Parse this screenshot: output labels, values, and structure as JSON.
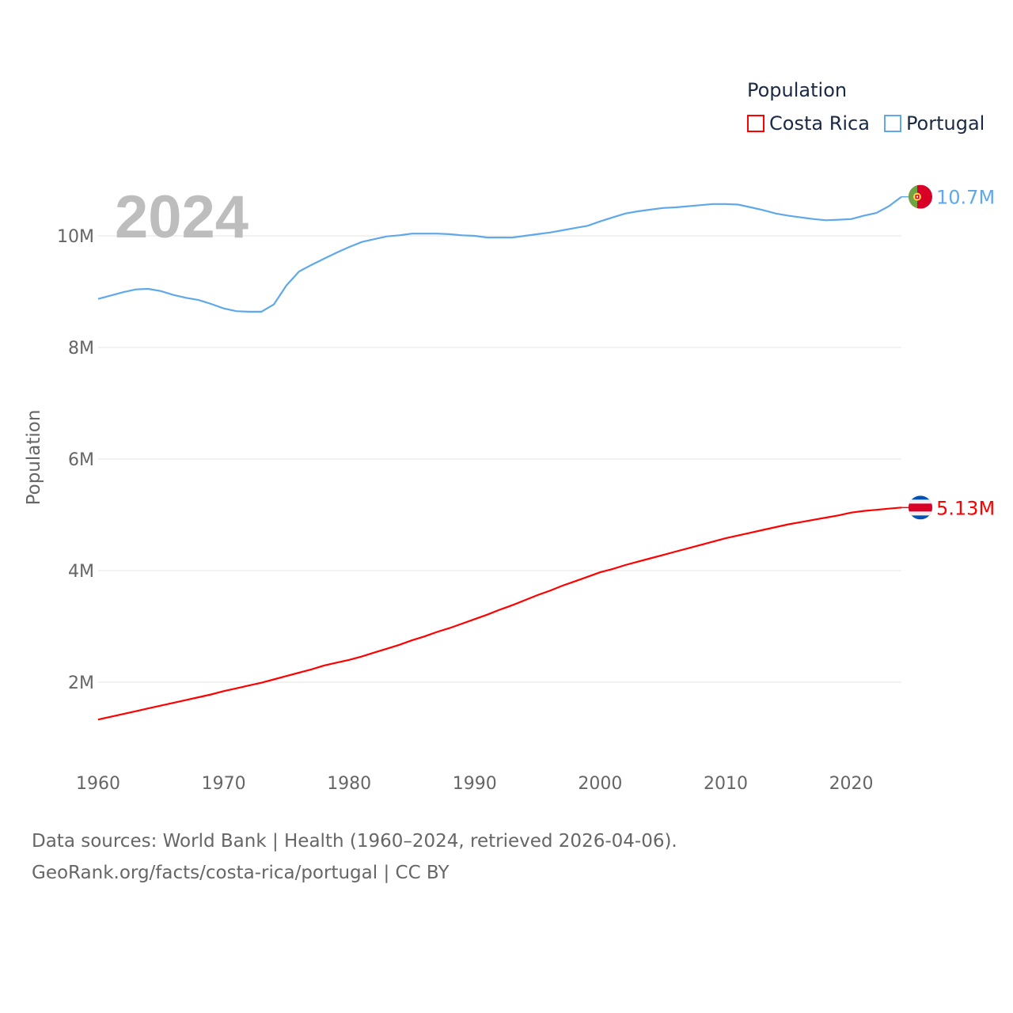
{
  "chart_data": {
    "type": "line",
    "title": "Population",
    "year_label": "2024",
    "xlabel": "",
    "ylabel": "Population",
    "xlim": [
      1960,
      2024
    ],
    "ylim": [
      0,
      10.7
    ],
    "x_ticks": [
      "1960",
      "1970",
      "1980",
      "1990",
      "2000",
      "2010",
      "2020"
    ],
    "y_ticks": [
      {
        "value": 2,
        "label": "2M"
      },
      {
        "value": 4,
        "label": "4M"
      },
      {
        "value": 6,
        "label": "6M"
      },
      {
        "value": 8,
        "label": "8M"
      },
      {
        "value": 10,
        "label": "10M"
      }
    ],
    "grid": true,
    "legend_position": "top-right",
    "x": [
      1960,
      1961,
      1962,
      1963,
      1964,
      1965,
      1966,
      1967,
      1968,
      1969,
      1970,
      1971,
      1972,
      1973,
      1974,
      1975,
      1976,
      1977,
      1978,
      1979,
      1980,
      1981,
      1982,
      1983,
      1984,
      1985,
      1986,
      1987,
      1988,
      1989,
      1990,
      1991,
      1992,
      1993,
      1994,
      1995,
      1996,
      1997,
      1998,
      1999,
      2000,
      2001,
      2002,
      2003,
      2004,
      2005,
      2006,
      2007,
      2008,
      2009,
      2010,
      2011,
      2012,
      2013,
      2014,
      2015,
      2016,
      2017,
      2018,
      2019,
      2020,
      2021,
      2022,
      2023,
      2024
    ],
    "series": [
      {
        "name": "Costa Rica",
        "color": "#ff0000",
        "end_label": "5.13M",
        "flag": "costa-rica",
        "values": [
          1.33,
          1.38,
          1.43,
          1.48,
          1.53,
          1.58,
          1.63,
          1.68,
          1.73,
          1.78,
          1.84,
          1.89,
          1.94,
          1.99,
          2.05,
          2.11,
          2.17,
          2.23,
          2.3,
          2.35,
          2.4,
          2.46,
          2.53,
          2.6,
          2.67,
          2.75,
          2.82,
          2.9,
          2.97,
          3.05,
          3.13,
          3.21,
          3.3,
          3.38,
          3.47,
          3.56,
          3.64,
          3.73,
          3.81,
          3.89,
          3.97,
          4.03,
          4.1,
          4.16,
          4.22,
          4.28,
          4.34,
          4.4,
          4.46,
          4.52,
          4.58,
          4.63,
          4.68,
          4.73,
          4.78,
          4.83,
          4.87,
          4.91,
          4.95,
          4.99,
          5.04,
          5.07,
          5.09,
          5.11,
          5.13
        ]
      },
      {
        "name": "Portugal",
        "color": "#5fa8ea",
        "end_label": "10.7M",
        "flag": "portugal",
        "values": [
          8.87,
          8.93,
          8.99,
          9.04,
          9.05,
          9.01,
          8.94,
          8.89,
          8.85,
          8.78,
          8.7,
          8.65,
          8.64,
          8.64,
          8.77,
          9.11,
          9.36,
          9.48,
          9.59,
          9.7,
          9.8,
          9.89,
          9.94,
          9.99,
          10.01,
          10.04,
          10.04,
          10.04,
          10.03,
          10.01,
          10.0,
          9.97,
          9.97,
          9.97,
          10.0,
          10.03,
          10.06,
          10.1,
          10.14,
          10.18,
          10.26,
          10.33,
          10.4,
          10.44,
          10.47,
          10.5,
          10.51,
          10.53,
          10.55,
          10.57,
          10.57,
          10.56,
          10.51,
          10.46,
          10.4,
          10.36,
          10.33,
          10.3,
          10.28,
          10.29,
          10.3,
          10.36,
          10.41,
          10.53,
          10.7
        ]
      }
    ]
  },
  "footer": {
    "line1": "Data sources: World Bank | Health (1960–2024, retrieved 2026-04-06).",
    "line2": "GeoRank.org/facts/costa-rica/portugal | CC BY"
  }
}
